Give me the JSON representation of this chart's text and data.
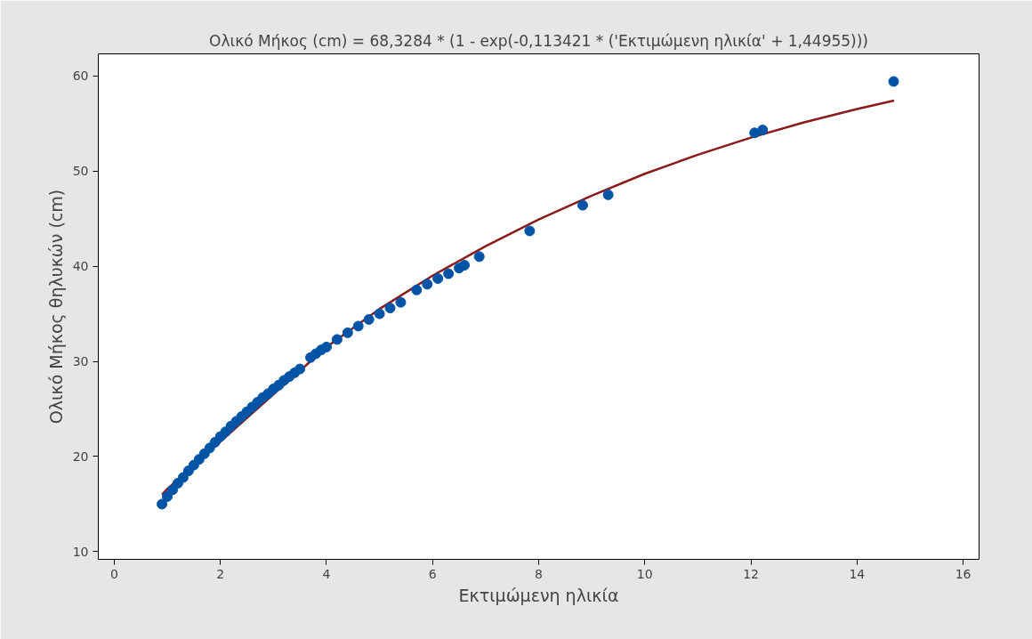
{
  "chart_data": {
    "type": "scatter",
    "title": "Ολικό Μήκος (cm) = 68,3284 * (1 - exp(-0,113421 * ('Εκτιμώμενη ηλικία' + 1,44955)))",
    "xlabel": "Εκτιμώμενη ηλικία",
    "ylabel": "Ολικό Μήκος θηλυκών (cm)",
    "xlim": [
      -0.3,
      16.3
    ],
    "ylim": [
      9.2,
      62.3
    ],
    "xticks": [
      0,
      2,
      4,
      6,
      8,
      10,
      12,
      14,
      16
    ],
    "yticks": [
      10,
      20,
      30,
      40,
      50,
      60
    ],
    "grid": false,
    "marker": "circle",
    "series": [
      {
        "color": "#0054a6",
        "x": [
          0.9,
          1.0,
          1.1,
          1.2,
          1.3,
          1.4,
          1.5,
          1.6,
          1.7,
          1.8,
          1.9,
          2.0,
          2.1,
          2.2,
          2.3,
          2.4,
          2.5,
          2.6,
          2.7,
          2.8,
          2.9,
          3.0,
          3.1,
          3.2,
          3.3,
          3.4,
          3.5,
          3.7,
          3.8,
          3.9,
          4.0,
          4.2,
          4.4,
          4.6,
          4.8,
          5.0,
          5.2,
          5.4,
          5.7,
          5.9,
          6.1,
          6.3,
          6.5,
          6.6,
          6.88,
          7.83,
          8.83,
          9.31,
          12.07,
          12.22,
          14.69
        ],
        "values": [
          15.0,
          15.8,
          16.5,
          17.2,
          17.8,
          18.5,
          19.1,
          19.7,
          20.3,
          20.9,
          21.5,
          22.1,
          22.6,
          23.2,
          23.7,
          24.2,
          24.7,
          25.2,
          25.7,
          26.2,
          26.6,
          27.1,
          27.5,
          28.0,
          28.4,
          28.8,
          29.2,
          30.4,
          30.8,
          31.2,
          31.5,
          32.3,
          33.0,
          33.7,
          34.4,
          35.0,
          35.6,
          36.2,
          37.5,
          38.1,
          38.7,
          39.2,
          39.8,
          40.1,
          41.0,
          43.7,
          46.4,
          47.5,
          54.0,
          54.3,
          59.4
        ]
      },
      {
        "type": "line",
        "color": "#8b1a1a",
        "marker": "none",
        "x": [
          0.9,
          1,
          4,
          5,
          6,
          7,
          8,
          9,
          10,
          11,
          12,
          13,
          14,
          14.7
        ],
        "values": [
          16.0,
          16.6,
          31.5,
          35.5,
          39.0,
          42.1,
          44.9,
          47.4,
          49.7,
          51.7,
          53.5,
          55.1,
          56.5,
          57.4
        ]
      }
    ]
  }
}
